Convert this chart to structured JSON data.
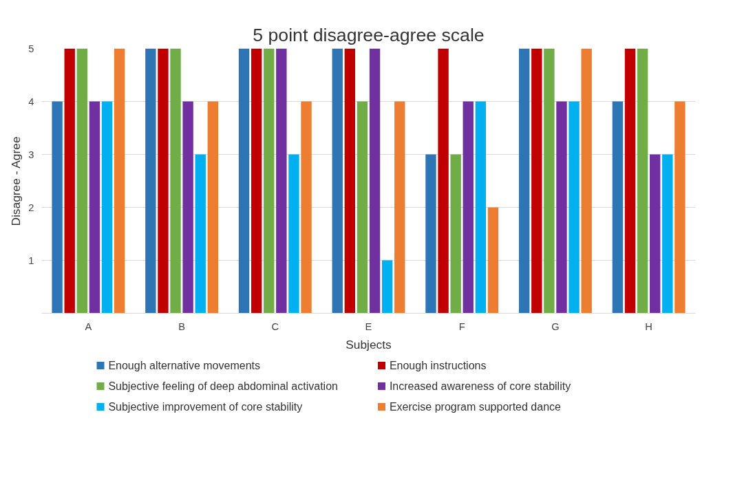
{
  "chart_data": {
    "type": "bar",
    "title": "5 point disagree-agree scale",
    "xlabel": "Subjects",
    "ylabel": "Disagree - Agree",
    "categories": [
      "A",
      "B",
      "C",
      "E",
      "F",
      "G",
      "H"
    ],
    "series": [
      {
        "name": "Enough alternative movements",
        "color": "#2e75b6",
        "values": [
          4,
          5,
          5,
          5,
          3,
          5,
          4
        ]
      },
      {
        "name": "Enough instructions",
        "color": "#c00000",
        "values": [
          5,
          5,
          5,
          5,
          5,
          5,
          5
        ]
      },
      {
        "name": "Subjective feeling of deep abdominal activation",
        "color": "#70ad47",
        "values": [
          5,
          5,
          5,
          4,
          3,
          5,
          5
        ]
      },
      {
        "name": "Increased awareness of core stability",
        "color": "#7030a0",
        "values": [
          4,
          4,
          5,
          5,
          4,
          4,
          3
        ]
      },
      {
        "name": "Subjective improvement of core stability",
        "color": "#00b0f0",
        "values": [
          4,
          3,
          3,
          1,
          4,
          4,
          3
        ]
      },
      {
        "name": "Exercise program supported dance",
        "color": "#ed7d31",
        "values": [
          5,
          4,
          4,
          4,
          2,
          5,
          4
        ]
      }
    ],
    "ylim": [
      0,
      5
    ],
    "yticks": [
      1,
      2,
      3,
      4,
      5
    ],
    "grid": "y",
    "legend": "bottom"
  }
}
